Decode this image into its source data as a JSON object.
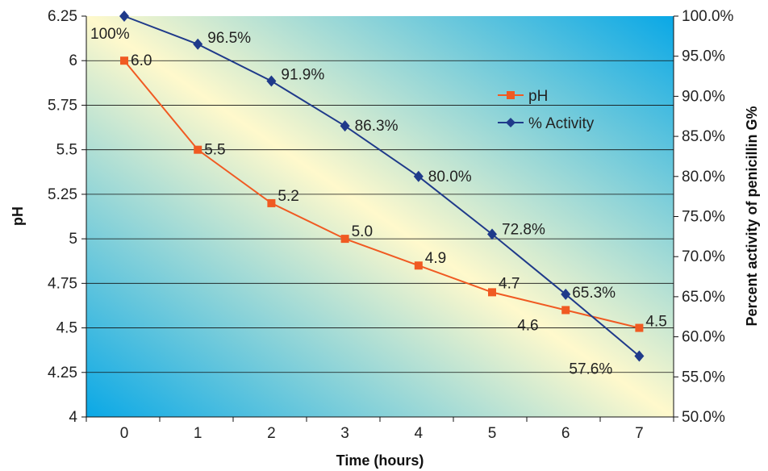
{
  "chart_data": {
    "type": "line",
    "title": "",
    "xlabel": "Time (hours)",
    "ylabel": "pH",
    "y2label": "Percent activity of penicillin G%",
    "x": [
      0,
      1,
      2,
      3,
      4,
      5,
      6,
      7
    ],
    "x_tick_labels": [
      "0",
      "1",
      "2",
      "3",
      "4",
      "5",
      "6",
      "7"
    ],
    "ylim": [
      4,
      6.25
    ],
    "y_tick_labels": [
      "4",
      "4.25",
      "4.5",
      "4.75",
      "5",
      "5.25",
      "5.5",
      "5.75",
      "6",
      "6.25"
    ],
    "y2lim": [
      50,
      100
    ],
    "y2_tick_labels": [
      "50.0%",
      "55.0%",
      "60.0%",
      "65.0%",
      "70.0%",
      "75.0%",
      "80.0%",
      "85.0%",
      "90.0%",
      "95.0%",
      "100.0%"
    ],
    "grid": true,
    "legend_position": "right",
    "series": [
      {
        "name": "pH",
        "axis": "left",
        "marker": "square",
        "color": "#f05a22",
        "values": [
          6.0,
          5.5,
          5.2,
          5.0,
          4.85,
          4.7,
          4.6,
          4.5
        ],
        "data_labels": [
          "6.0",
          "5.5",
          "5.2",
          "5.0",
          "4.9",
          "4.7",
          "4.6",
          "4.5"
        ]
      },
      {
        "name": "% Activity",
        "axis": "right",
        "marker": "diamond",
        "color": "#1f3a8a",
        "values": [
          100,
          96.5,
          91.9,
          86.3,
          80.0,
          72.8,
          65.3,
          57.6
        ],
        "data_labels": [
          "100%",
          "96.5%",
          "91.9%",
          "86.3%",
          "80.0%",
          "72.8%",
          "65.3%",
          "57.6%"
        ]
      }
    ]
  }
}
